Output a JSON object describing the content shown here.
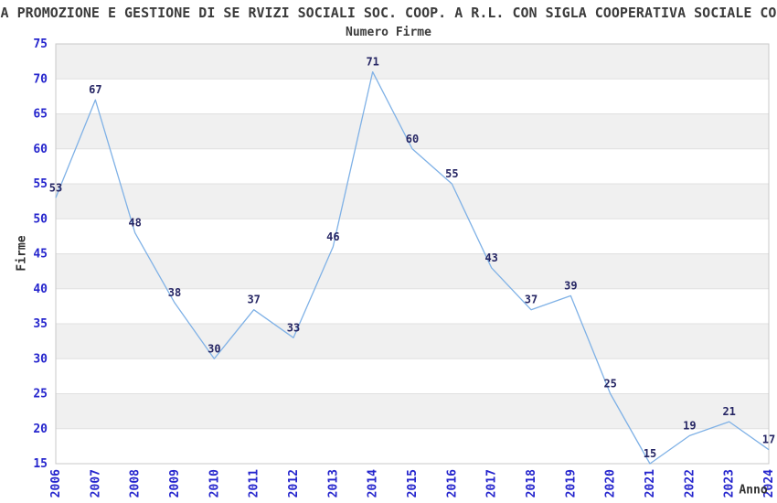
{
  "figure": {
    "title": "A PROMOZIONE E GESTIONE DI SE RVIZI SOCIALI SOC. COOP. A R.L. CON SIGLA COOPERATIVA SOCIALE CO",
    "subtitle": "Numero Firme"
  },
  "chart_data": {
    "type": "line",
    "title": "Numero Firme",
    "xlabel": "Anno",
    "ylabel": "Firme",
    "x": [
      "2006",
      "2007",
      "2008",
      "2009",
      "2010",
      "2011",
      "2012",
      "2013",
      "2014",
      "2015",
      "2016",
      "2017",
      "2018",
      "2019",
      "2020",
      "2021",
      "2022",
      "2023",
      "2024"
    ],
    "values": [
      53,
      67,
      48,
      38,
      30,
      37,
      33,
      46,
      71,
      60,
      55,
      43,
      37,
      39,
      25,
      15,
      19,
      21,
      17
    ],
    "ylim": [
      15,
      75
    ],
    "ytick_step": 5,
    "grid": true,
    "legend": false,
    "data_labels": true,
    "colors": {
      "line": "#7fb1e6",
      "tick_label": "#2525cd",
      "data_label": "#262664",
      "band": "#f0f0f0",
      "gridline": "#e0e0e0",
      "spine": "#c9c9c9",
      "title": "#3b3b3b",
      "axis_title": "#333333"
    }
  }
}
